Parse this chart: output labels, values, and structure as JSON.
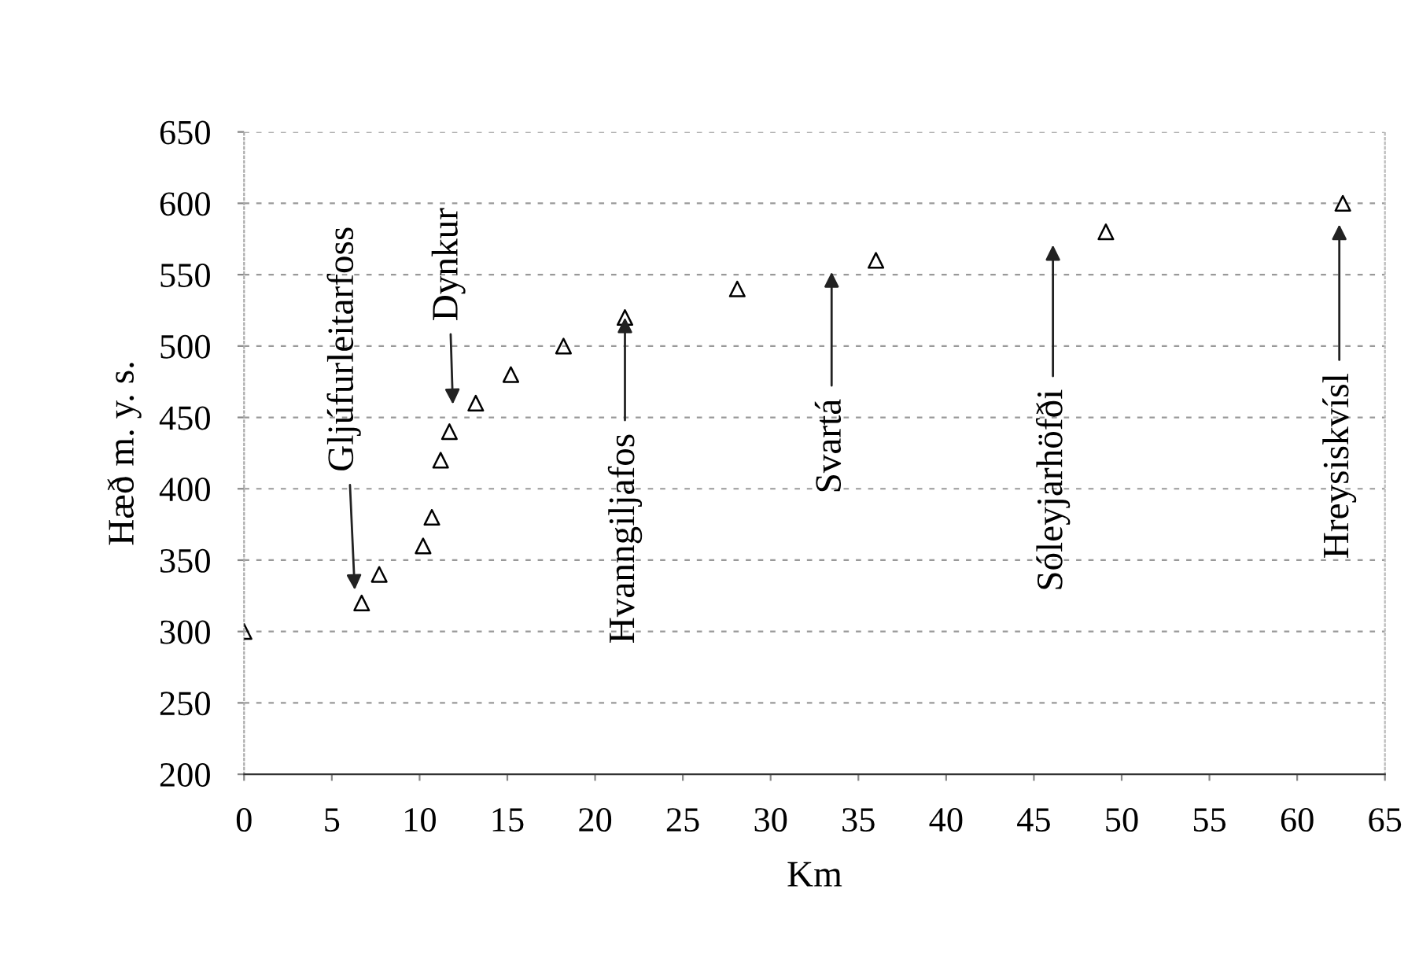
{
  "chart_data": {
    "type": "scatter",
    "xlabel": "Km",
    "ylabel": "Hæð m. y. s.",
    "x": [
      0,
      6.7,
      7.7,
      10.2,
      10.7,
      11.2,
      11.7,
      13.2,
      15.2,
      18.2,
      21.7,
      28.1,
      36.0,
      49.1,
      62.6
    ],
    "series": [
      {
        "color": "#000000",
        "values": [
          300,
          320,
          340,
          360,
          380,
          420,
          440,
          460,
          480,
          500,
          520,
          540,
          560,
          580,
          600
        ]
      }
    ],
    "marker": "triangle",
    "xlim": [
      0,
      65
    ],
    "xticks": [
      0,
      5,
      10,
      15,
      20,
      25,
      30,
      35,
      40,
      45,
      50,
      55,
      60,
      65
    ],
    "ylim": [
      200,
      650
    ],
    "yticks": [
      200,
      250,
      300,
      350,
      400,
      450,
      500,
      550,
      600,
      650
    ],
    "grid": "y",
    "annotations": [
      "Gljúfurleitarfoss",
      "Dynkur",
      {
        "text": "Hvanngiljafos",
        "x": 21.7,
        "y": 520
      },
      "Svartá",
      "Sóleyjarhöfði",
      "Hreysiskvísl"
    ]
  }
}
